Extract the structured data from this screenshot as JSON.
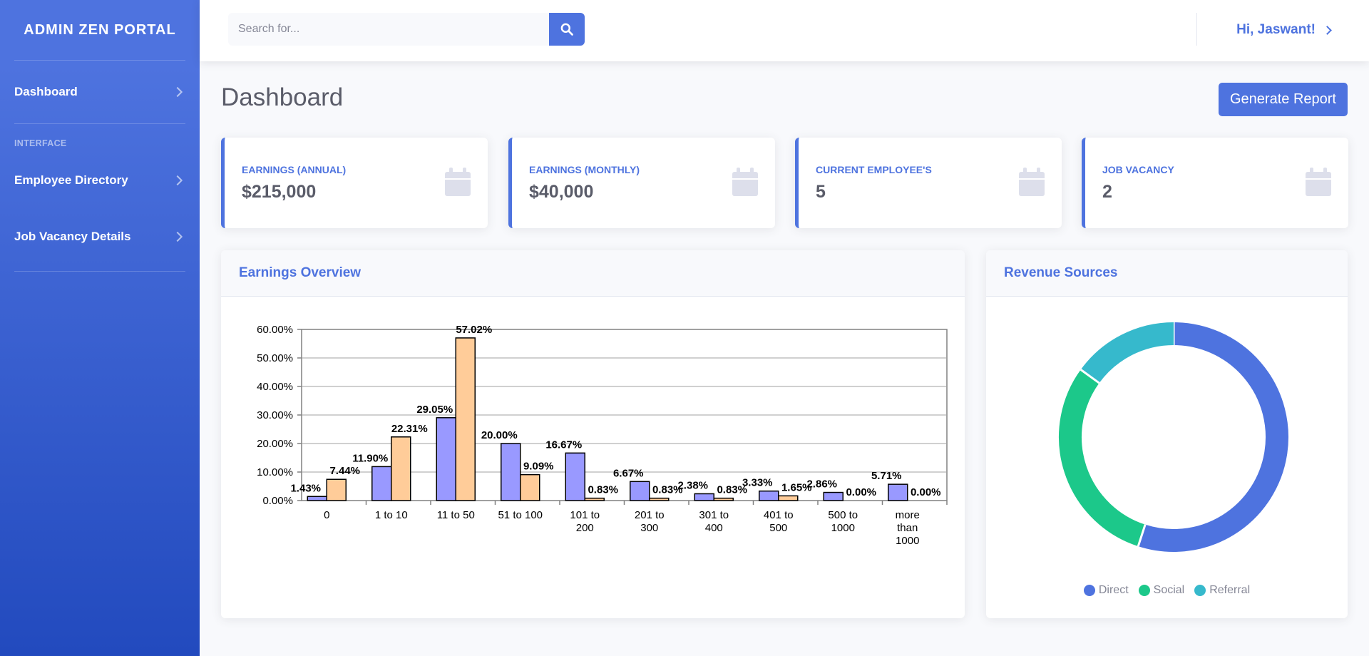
{
  "sidebar": {
    "brand": "ADMIN ZEN PORTAL",
    "dashboard_label": "Dashboard",
    "heading": "INTERFACE",
    "items": [
      {
        "label": "Employee Directory"
      },
      {
        "label": "Job Vacancy Details"
      }
    ]
  },
  "topbar": {
    "search_placeholder": "Search for...",
    "user_greeting": "Hi, Jaswant!"
  },
  "page": {
    "title": "Dashboard",
    "generate_button": "Generate Report"
  },
  "stats": [
    {
      "label": "EARNINGS (ANNUAL)",
      "value": "$215,000"
    },
    {
      "label": "EARNINGS (MONTHLY)",
      "value": "$40,000"
    },
    {
      "label": "CURRENT EMPLOYEE'S",
      "value": "5"
    },
    {
      "label": "JOB VACANCY",
      "value": "2"
    }
  ],
  "earnings_panel": {
    "title": "Earnings Overview"
  },
  "revenue_panel": {
    "title": "Revenue Sources"
  },
  "colors": {
    "primary": "#4e73df",
    "success": "#1cc88a",
    "info": "#36b9cc",
    "bar_series_1": "#9999ff",
    "bar_series_2": "#ffcc99"
  },
  "chart_data": [
    {
      "type": "bar",
      "categories": [
        [
          "0"
        ],
        [
          "1 to 10"
        ],
        [
          "11 to 50"
        ],
        [
          "51 to 100"
        ],
        [
          "101 to",
          "200"
        ],
        [
          "201 to",
          "300"
        ],
        [
          "301 to",
          "400"
        ],
        [
          "401 to",
          "500"
        ],
        [
          "500 to",
          "1000"
        ],
        [
          "more",
          "than",
          "1000"
        ]
      ],
      "series": [
        {
          "values": [
            1.43,
            11.9,
            29.05,
            20.0,
            16.67,
            6.67,
            2.38,
            3.33,
            2.86,
            5.71
          ]
        },
        {
          "values": [
            7.44,
            22.31,
            57.02,
            9.09,
            0.83,
            0.83,
            0.83,
            1.65,
            0.0,
            0.0
          ]
        }
      ],
      "ylim": [
        0,
        60
      ],
      "yticks": [
        "0.00%",
        "10.00%",
        "20.00%",
        "30.00%",
        "40.00%",
        "50.00%",
        "60.00%"
      ],
      "data_labels": [
        [
          "1.43%",
          "11.90%",
          "29.05%",
          "20.00%",
          "16.67%",
          "6.67%",
          "2.38%",
          "3.33%",
          "2.86%",
          "5.71%"
        ],
        [
          "7.44%",
          "22.31%",
          "57.02%",
          "9.09%",
          "0.83%",
          "0.83%",
          "0.83%",
          "1.65%",
          "0.00%",
          "0.00%"
        ]
      ],
      "grid": true
    },
    {
      "type": "pie",
      "donut": true,
      "labels": [
        "Direct",
        "Social",
        "Referral"
      ],
      "values": [
        55,
        30,
        15
      ],
      "colors": [
        "#4e73df",
        "#1cc88a",
        "#36b9cc"
      ],
      "legend": "bottom"
    }
  ]
}
